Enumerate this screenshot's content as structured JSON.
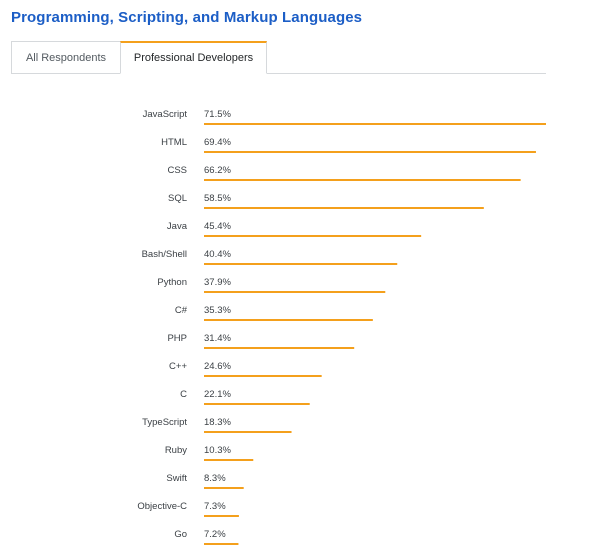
{
  "header": {
    "title": "Programming, Scripting, and Markup Languages"
  },
  "tabs": [
    {
      "label": "All Respondents",
      "active": false
    },
    {
      "label": "Professional Developers",
      "active": true
    }
  ],
  "colors": {
    "accent": "#f4a01c",
    "title": "#1c5ec6",
    "tab_border": "#d6d9dc"
  },
  "chart_data": {
    "type": "bar",
    "orientation": "horizontal",
    "categories": [
      "JavaScript",
      "HTML",
      "CSS",
      "SQL",
      "Java",
      "Bash/Shell",
      "Python",
      "C#",
      "PHP",
      "C++",
      "C",
      "TypeScript",
      "Ruby",
      "Swift",
      "Objective-C",
      "Go"
    ],
    "values": [
      71.5,
      69.4,
      66.2,
      58.5,
      45.4,
      40.4,
      37.9,
      35.3,
      31.4,
      24.6,
      22.1,
      18.3,
      10.3,
      8.3,
      7.3,
      7.2
    ],
    "value_labels": [
      "71.5%",
      "69.4%",
      "66.2%",
      "58.5%",
      "45.4%",
      "40.4%",
      "37.9%",
      "35.3%",
      "31.4%",
      "24.6%",
      "22.1%",
      "18.3%",
      "10.3%",
      "8.3%",
      "7.3%",
      "7.2%"
    ],
    "unit": "%",
    "title": "",
    "xlabel": "",
    "ylabel": "",
    "xlim": [
      0,
      71.5
    ],
    "grid": false,
    "legend": "none",
    "bar_color": "#f4a01c"
  }
}
